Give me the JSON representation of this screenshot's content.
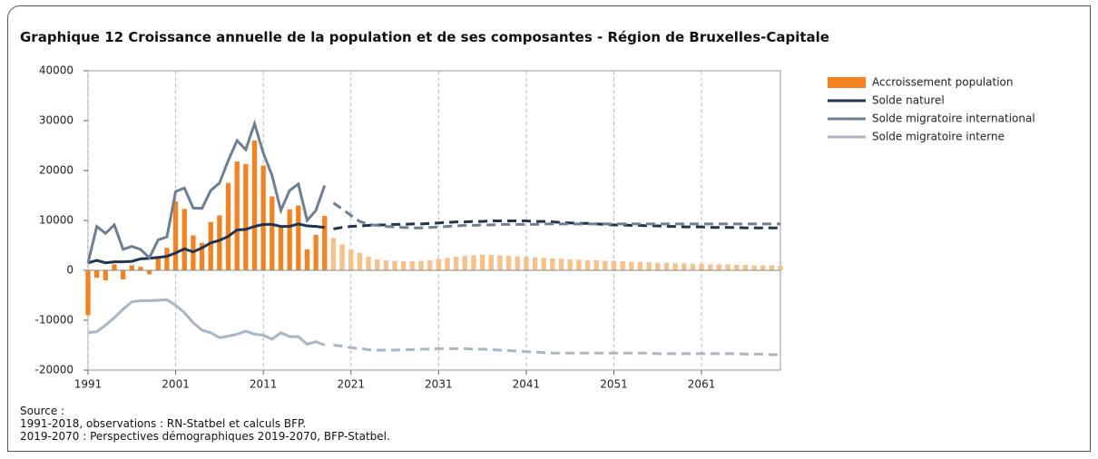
{
  "chart_data": {
    "type": "bar_line",
    "title": "Graphique 12  Croissance annuelle de la population et de ses composantes - Région de Bruxelles-Capitale",
    "source": [
      "Source :",
      "1991-2018, observations : RN-Statbel et calculs BFP.",
      "2019-2070 : Perspectives démographiques 2019-2070, BFP-Statbel."
    ],
    "projection_start": 2019,
    "x": [
      1991,
      1992,
      1993,
      1994,
      1995,
      1996,
      1997,
      1998,
      1999,
      2000,
      2001,
      2002,
      2003,
      2004,
      2005,
      2006,
      2007,
      2008,
      2009,
      2010,
      2011,
      2012,
      2013,
      2014,
      2015,
      2016,
      2017,
      2018,
      2019,
      2020,
      2021,
      2022,
      2023,
      2024,
      2025,
      2026,
      2027,
      2028,
      2029,
      2030,
      2031,
      2032,
      2033,
      2034,
      2035,
      2036,
      2037,
      2038,
      2039,
      2040,
      2041,
      2042,
      2043,
      2044,
      2045,
      2046,
      2047,
      2048,
      2049,
      2050,
      2051,
      2052,
      2053,
      2054,
      2055,
      2056,
      2057,
      2058,
      2059,
      2060,
      2061,
      2062,
      2063,
      2064,
      2065,
      2066,
      2067,
      2068,
      2069,
      2070
    ],
    "xlim": [
      1991,
      2070
    ],
    "xticks": [
      1991,
      2001,
      2011,
      2021,
      2031,
      2041,
      2051,
      2061
    ],
    "ylim": [
      -20000,
      40000
    ],
    "yticks": [
      -20000,
      -10000,
      0,
      10000,
      20000,
      30000,
      40000
    ],
    "series": [
      {
        "name": "Accroissement population",
        "kind": "bar",
        "color": "#f5821f",
        "projection_color": "#f9c08a",
        "values": [
          -9000,
          -1500,
          -2000,
          1200,
          -1800,
          1000,
          700,
          -800,
          2500,
          4500,
          13800,
          12300,
          7000,
          5500,
          9700,
          11000,
          17500,
          21800,
          21300,
          26000,
          21000,
          14800,
          9000,
          12200,
          13000,
          4200,
          7100,
          10900,
          6500,
          5200,
          4200,
          3500,
          2700,
          2200,
          2000,
          1900,
          1800,
          1800,
          1900,
          2000,
          2300,
          2500,
          2700,
          2900,
          3000,
          3100,
          3100,
          3000,
          2900,
          2800,
          2700,
          2600,
          2500,
          2400,
          2300,
          2200,
          2100,
          2000,
          2000,
          1900,
          1900,
          1800,
          1700,
          1700,
          1600,
          1500,
          1500,
          1400,
          1400,
          1300,
          1300,
          1200,
          1200,
          1200,
          1100,
          1100,
          1000,
          1000,
          1000,
          900
        ]
      },
      {
        "name": "Solde naturel",
        "kind": "line",
        "color": "#1f3552",
        "values": [
          1500,
          2000,
          1500,
          1700,
          1700,
          1800,
          2300,
          2400,
          2600,
          2800,
          3500,
          4300,
          3700,
          4500,
          5500,
          6000,
          6800,
          8100,
          8200,
          8800,
          9200,
          9200,
          8800,
          8800,
          9300,
          8900,
          8800,
          8600,
          8300,
          8600,
          8800,
          8900,
          9000,
          9100,
          9100,
          9200,
          9200,
          9300,
          9300,
          9400,
          9500,
          9600,
          9700,
          9700,
          9800,
          9800,
          9900,
          9900,
          9900,
          9900,
          9900,
          9800,
          9800,
          9700,
          9600,
          9500,
          9400,
          9400,
          9300,
          9200,
          9100,
          9100,
          9000,
          9000,
          8900,
          8900,
          8800,
          8800,
          8700,
          8700,
          8700,
          8600,
          8600,
          8600,
          8600,
          8500,
          8500,
          8500,
          8500,
          8500
        ]
      },
      {
        "name": "Solde migratoire international",
        "kind": "line",
        "color": "#6d7f94",
        "values": [
          1500,
          8800,
          7400,
          9100,
          4200,
          4800,
          4200,
          2500,
          6100,
          6700,
          15800,
          16500,
          12500,
          12400,
          16000,
          17500,
          22000,
          26000,
          24200,
          29400,
          23500,
          19000,
          12000,
          16000,
          17300,
          10000,
          12000,
          17000,
          13500,
          12300,
          11000,
          9800,
          9200,
          9000,
          8800,
          8700,
          8600,
          8500,
          8500,
          8600,
          8700,
          8800,
          8900,
          9000,
          9000,
          9100,
          9100,
          9200,
          9200,
          9200,
          9200,
          9200,
          9300,
          9300,
          9300,
          9300,
          9300,
          9300,
          9300,
          9300,
          9300,
          9300,
          9300,
          9300,
          9300,
          9300,
          9300,
          9300,
          9300,
          9300,
          9300,
          9300,
          9300,
          9300,
          9300,
          9300,
          9300,
          9300,
          9300,
          9300
        ]
      },
      {
        "name": "Solde migratoire interne",
        "kind": "line",
        "color": "#a9b6c6",
        "values": [
          -12500,
          -12300,
          -11000,
          -9500,
          -7800,
          -6300,
          -6100,
          -6100,
          -6000,
          -5900,
          -7000,
          -8500,
          -10500,
          -12000,
          -12500,
          -13500,
          -13200,
          -12800,
          -12200,
          -12800,
          -13000,
          -13800,
          -12500,
          -13300,
          -13300,
          -14800,
          -14300,
          -15000,
          -15000,
          -15200,
          -15500,
          -15700,
          -15900,
          -16000,
          -16000,
          -16000,
          -15900,
          -15900,
          -15800,
          -15800,
          -15700,
          -15700,
          -15700,
          -15700,
          -15800,
          -15800,
          -15900,
          -16000,
          -16100,
          -16200,
          -16300,
          -16400,
          -16500,
          -16600,
          -16600,
          -16600,
          -16600,
          -16600,
          -16600,
          -16600,
          -16600,
          -16600,
          -16600,
          -16600,
          -16600,
          -16700,
          -16700,
          -16700,
          -16700,
          -16700,
          -16700,
          -16700,
          -16700,
          -16700,
          -16700,
          -16800,
          -16800,
          -16800,
          -16900,
          -16900
        ]
      }
    ]
  }
}
